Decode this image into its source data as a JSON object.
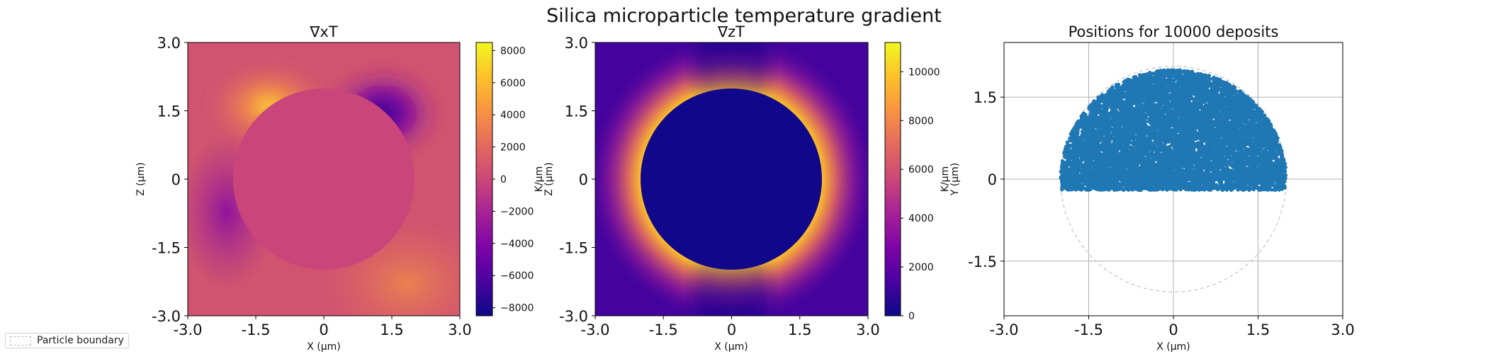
{
  "suptitle": "Silica microparticle temperature gradient",
  "legend": {
    "label": "Particle boundary"
  },
  "chart_data": [
    {
      "type": "heatmap",
      "title": "∇xT",
      "xlabel": "X (μm)",
      "ylabel": "Z (μm)",
      "xlim": [
        -3.0,
        3.0
      ],
      "ylim": [
        -3.0,
        3.0
      ],
      "xticks": [
        "-3.0",
        "-1.5",
        "0",
        "1.5",
        "3.0"
      ],
      "yticks": [
        "3.0",
        "1.5",
        "0",
        "-1.5",
        "-3.0"
      ],
      "xtick_values": [
        -3.0,
        -1.5,
        0,
        1.5,
        3.0
      ],
      "ytick_values": [
        3.0,
        1.5,
        0,
        -1.5,
        -3.0
      ],
      "particle_radius": 2.0,
      "colormap": "plasma",
      "colorbar": {
        "label": "",
        "range": [
          -8500,
          8500
        ],
        "ticks": [
          "8000",
          "6000",
          "4000",
          "2000",
          "0",
          "−2000",
          "−4000",
          "−6000",
          "−8000"
        ],
        "tick_values": [
          8000,
          6000,
          4000,
          2000,
          0,
          -2000,
          -4000,
          -6000,
          -8000
        ]
      }
    },
    {
      "type": "heatmap",
      "title": "∇zT",
      "xlabel": "X (μm)",
      "ylabel": "Z (μm)",
      "xlim": [
        -3.0,
        3.0
      ],
      "ylim": [
        -3.0,
        3.0
      ],
      "xticks": [
        "-3.0",
        "-1.5",
        "0",
        "1.5",
        "3.0"
      ],
      "yticks": [
        "3.0",
        "1.5",
        "0",
        "-1.5",
        "-3.0"
      ],
      "xtick_values": [
        -3.0,
        -1.5,
        0,
        1.5,
        3.0
      ],
      "ytick_values": [
        3.0,
        1.5,
        0,
        -1.5,
        -3.0
      ],
      "particle_radius": 2.0,
      "colormap": "plasma",
      "colorbar": {
        "label": "K/μm",
        "range": [
          0,
          11200
        ],
        "ticks": [
          "10000",
          "8000",
          "6000",
          "4000",
          "2000",
          "0"
        ],
        "tick_values": [
          10000,
          8000,
          6000,
          4000,
          2000,
          0
        ]
      }
    },
    {
      "type": "scatter",
      "title": "Positions for 10000 deposits",
      "xlabel": "X (μm)",
      "ylabel": "Y (μm)",
      "cbar_label_left": "K/μm",
      "xlim": [
        -3.0,
        3.0
      ],
      "ylim": [
        -2.5,
        2.5
      ],
      "xticks": [
        "-3.0",
        "-1.5",
        "0",
        "1.5",
        "3.0"
      ],
      "yticks": [
        "1.5",
        "0",
        "-1.5"
      ],
      "xtick_values": [
        -3.0,
        -1.5,
        0,
        1.5,
        3.0
      ],
      "ytick_values": [
        1.5,
        0,
        -1.5
      ],
      "grid": true,
      "deposit_count": 10000,
      "deposit_region": {
        "radius": 2.0,
        "y_min": -0.2
      },
      "boundary_radius": 2.0,
      "point_color": "#1f77b4"
    }
  ]
}
